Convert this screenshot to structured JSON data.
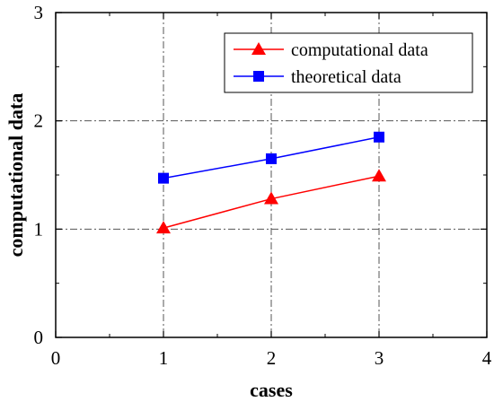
{
  "chart_data": {
    "type": "line",
    "xlabel": "cases",
    "ylabel": "computational data",
    "xlim": [
      0,
      4
    ],
    "ylim": [
      0,
      3
    ],
    "x_ticks": [
      0,
      1,
      2,
      3,
      4
    ],
    "y_ticks": [
      0,
      1,
      2,
      3
    ],
    "x_tick_labels": [
      "0",
      "1",
      "2",
      "3",
      "4"
    ],
    "y_tick_labels": [
      "0",
      "1",
      "2",
      "3"
    ],
    "grid": true,
    "legend_position": "top-right",
    "series": [
      {
        "name": "computational data",
        "color": "#ff0000",
        "marker": "triangle",
        "x": [
          1,
          2,
          3
        ],
        "y": [
          1.01,
          1.28,
          1.49
        ]
      },
      {
        "name": "theoretical data",
        "color": "#0000ff",
        "marker": "square",
        "x": [
          1,
          2,
          3
        ],
        "y": [
          1.47,
          1.65,
          1.85
        ]
      }
    ]
  }
}
